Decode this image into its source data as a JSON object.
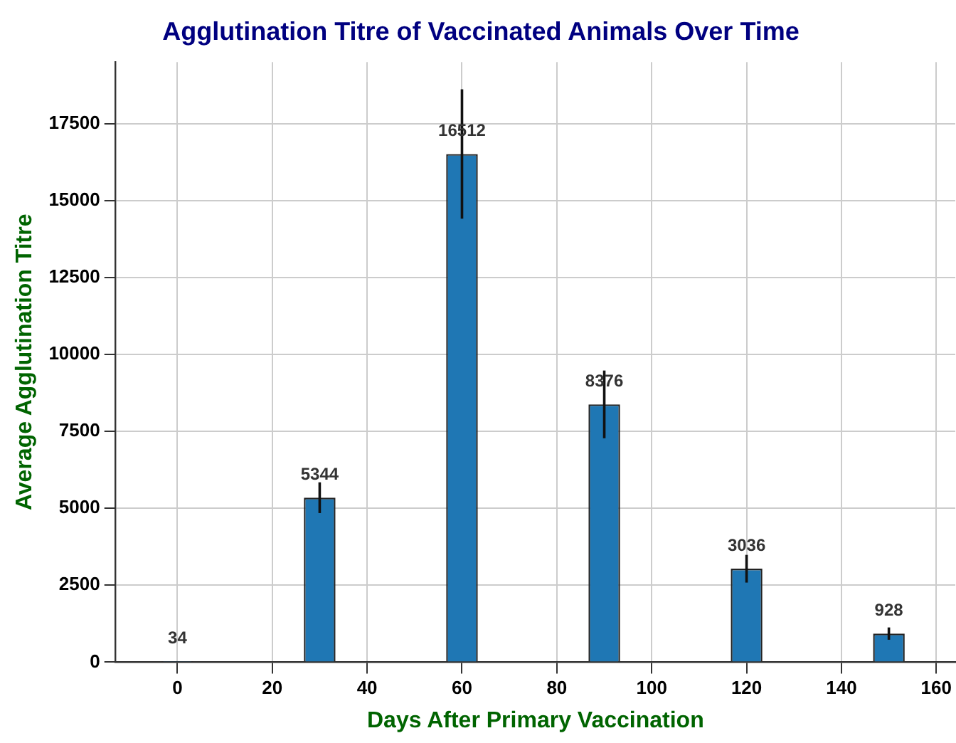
{
  "chart_data": {
    "type": "bar",
    "title": "Agglutination Titre of Vaccinated Animals Over Time",
    "xlabel": "Days After Primary Vaccination",
    "ylabel": "Average Agglutination Titre",
    "x": [
      0,
      30,
      60,
      90,
      120,
      150
    ],
    "values": [
      34,
      5344,
      16512,
      8376,
      3036,
      928
    ],
    "errors": [
      null,
      500,
      2100,
      1100,
      450,
      200
    ],
    "color": "#1f77b4",
    "xlim": [
      -13,
      164
    ],
    "xticks": [
      0,
      20,
      40,
      60,
      80,
      100,
      120,
      140,
      160
    ],
    "ylim": [
      0,
      19500
    ],
    "yticks": [
      0,
      2500,
      5000,
      7500,
      10000,
      12500,
      15000,
      17500
    ],
    "grid": true,
    "data_labels": true
  }
}
